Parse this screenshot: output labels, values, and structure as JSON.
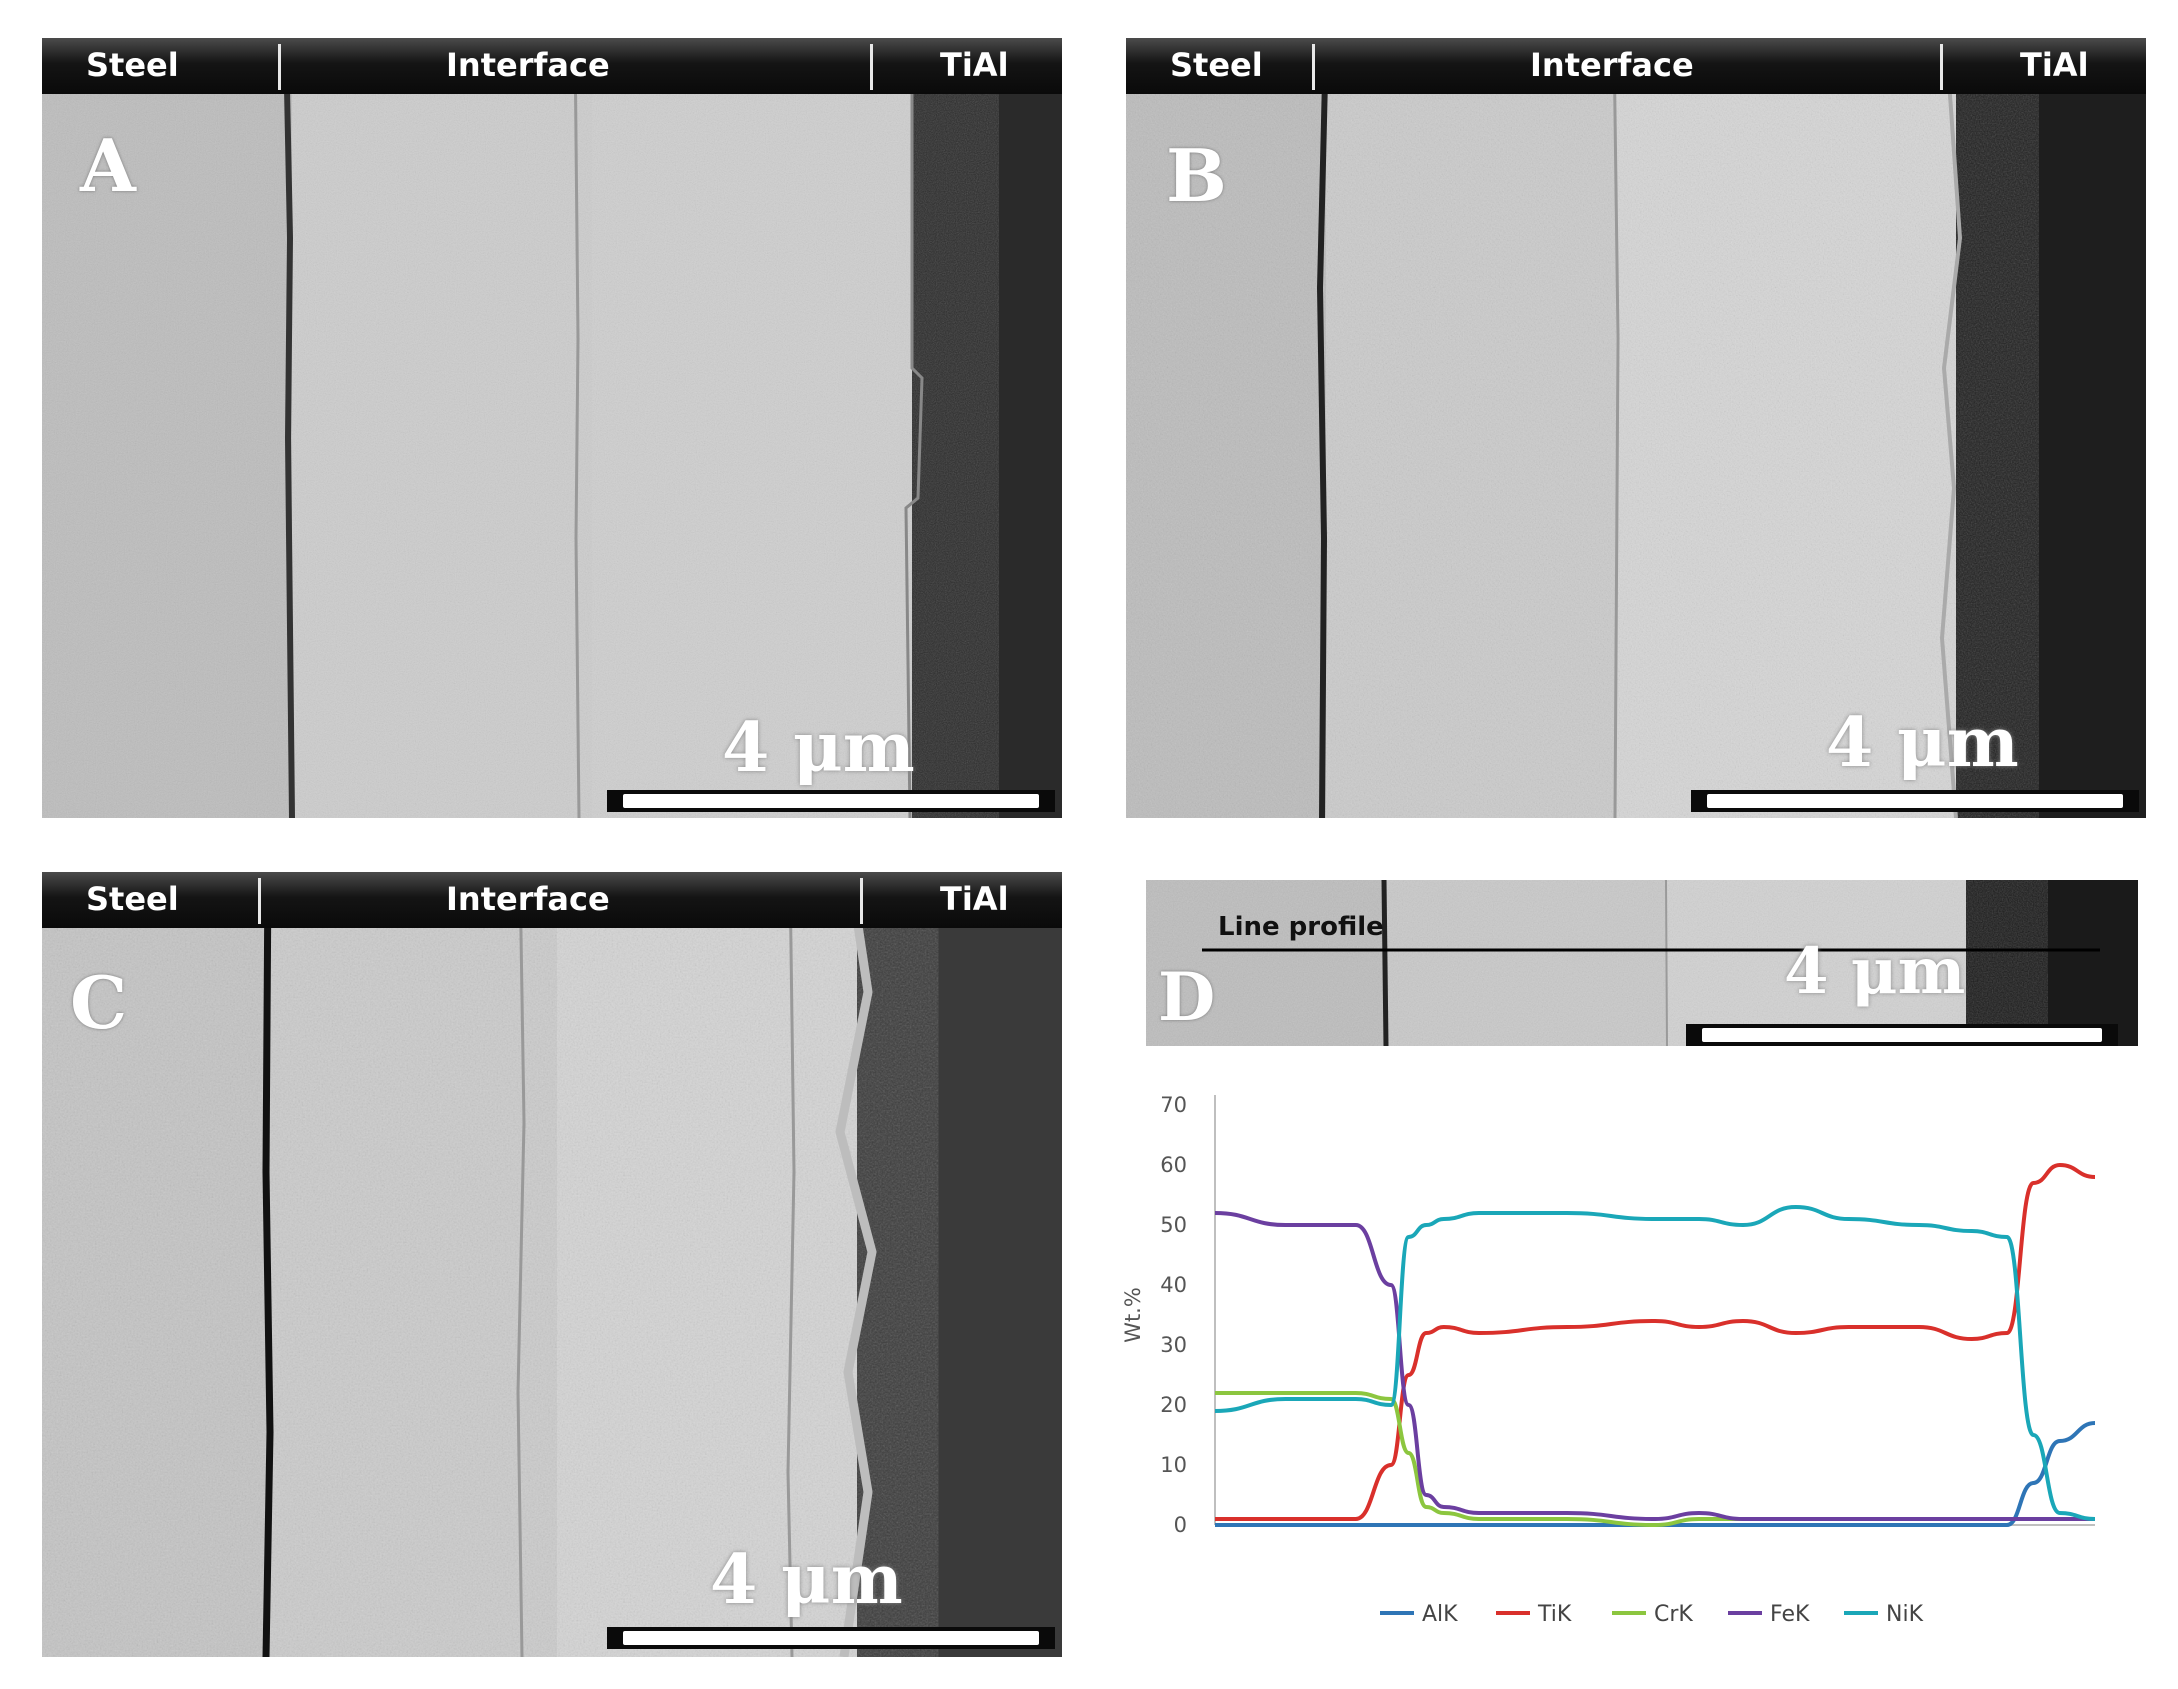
{
  "panels": [
    {
      "label": "A",
      "header": [
        "Steel",
        "Interface",
        "TiAl"
      ],
      "scale_text": "4 μm"
    },
    {
      "label": "B",
      "header": [
        "Steel",
        "Interface",
        "TiAl"
      ],
      "scale_text": "4 μm"
    },
    {
      "label": "C",
      "header": [
        "Steel",
        "Interface",
        "TiAl"
      ],
      "scale_text": "4 μm"
    },
    {
      "label": "D",
      "line_profile_label": "Line profile",
      "scale_text": "4 μm"
    }
  ],
  "chart_data": {
    "type": "line",
    "title": "",
    "xlabel": "",
    "ylabel": "Wt.%",
    "ylim": [
      0,
      70
    ],
    "yticks": [
      0,
      10,
      20,
      30,
      40,
      50,
      60,
      70
    ],
    "legend_position": "bottom",
    "x": [
      0,
      0.08,
      0.16,
      0.2,
      0.22,
      0.24,
      0.26,
      0.3,
      0.4,
      0.5,
      0.55,
      0.6,
      0.66,
      0.72,
      0.8,
      0.86,
      0.9,
      0.93,
      0.96,
      1.0
    ],
    "series": [
      {
        "name": "AlK",
        "color": "#2e75b6",
        "values": [
          0,
          0,
          0,
          0,
          0,
          0,
          0,
          0,
          0,
          0,
          0,
          0,
          0,
          0,
          0,
          0,
          0,
          7,
          14,
          17
        ]
      },
      {
        "name": "TiK",
        "color": "#d9302b",
        "values": [
          1,
          1,
          1,
          10,
          25,
          32,
          33,
          32,
          33,
          34,
          33,
          34,
          32,
          33,
          33,
          31,
          32,
          57,
          60,
          58
        ]
      },
      {
        "name": "CrK",
        "color": "#8cc63f",
        "values": [
          22,
          22,
          22,
          21,
          12,
          3,
          2,
          1,
          1,
          0,
          1,
          1,
          1,
          1,
          1,
          1,
          1,
          1,
          1,
          1
        ]
      },
      {
        "name": "FeK",
        "color": "#6b3fa0",
        "values": [
          52,
          50,
          50,
          40,
          20,
          5,
          3,
          2,
          2,
          1,
          2,
          1,
          1,
          1,
          1,
          1,
          1,
          1,
          1,
          1
        ]
      },
      {
        "name": "NiK",
        "color": "#1aa7b8",
        "values": [
          19,
          21,
          21,
          20,
          48,
          50,
          51,
          52,
          52,
          51,
          51,
          50,
          53,
          51,
          50,
          49,
          48,
          15,
          2,
          1
        ]
      }
    ]
  }
}
